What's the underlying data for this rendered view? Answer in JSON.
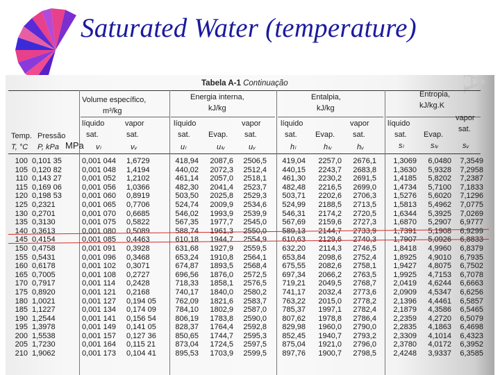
{
  "slide": {
    "title": "Saturated Water (temperature)",
    "logo_icon": "fan-logo-icon",
    "accent_red": "#d42a2a",
    "title_color": "#1a1a9e"
  },
  "table": {
    "caption_bold": "Tabela A-1",
    "caption_italic": "Continuação",
    "ghost_text": "ndice A",
    "headers": {
      "temp": "Temp.",
      "pressao": "Pressão",
      "temp_sym": "T, °C",
      "press_sym": "P, kPa",
      "press_alt": "MPa",
      "volume": "Volume específico,",
      "volume_unit": "m³/kg",
      "energy": "Energia interna,",
      "energy_unit": "kJ/kg",
      "enthalpy": "Entalpia,",
      "enthalpy_unit": "kJ/kg",
      "entropy": "Entropia,",
      "entropy_unit": "kJ/kg.K",
      "liquido": "líquido",
      "vapor": "vapor",
      "sat": "sat.",
      "evap": "Evap.",
      "vl": "vₗ",
      "vv": "vᵥ",
      "ul": "uₗ",
      "ulv": "uₗᵥ",
      "uv": "uᵥ",
      "hl": "hₗ",
      "hlv": "hₗᵥ",
      "hv": "hᵥ",
      "sl": "sₗ",
      "slv": "sₗᵥ",
      "sv": "sᵥ"
    },
    "columns": {
      "T": "100\n105\n110\n115\n120\n125\n130\n135\n140\n145\n150\n155\n160\n165\n170\n175\n180\n185\n190\n195\n200\n205\n210",
      "P": "0,101 35\n0,120 82\n0,143 27\n0,169 06\n0,198 53\n0,2321\n0,2701\n0,3130\n0,3613\n0,4154\n0,4758\n0,5431\n0,6178\n0,7005\n0,7917\n0,8920\n1,0021\n1,1227\n1,2544\n1,3978\n1,5538\n1,7230\n1,9062",
      "vl": "0,001 044\n0,001 048\n0,001 052\n0,001 056\n0,001 060\n0,001 065\n0,001 070\n0,001 075\n0,001 080\n0,001 085\n0,001 091\n0,001 096\n0,001 102\n0,001 108\n0,001 114\n0,001 121\n0,001 127\n0,001 134\n0,001 141\n0,001 149\n0,001 157\n0,001 164\n0,001 173",
      "vv": "1,6729\n1,4194\n1,2102\n1,0366\n0,8919\n0,7706\n0,6685\n0,5822\n0,5089\n0,4463\n0,3928\n0,3468\n0,3071\n0,2727\n0,2428\n0,2168\n0,194 05\n0,174 09\n0,156 54\n0,141 05\n0,127 36\n0,115 21\n0,104 41",
      "ul": "418,94\n440,02\n461,14\n482,30\n503,50\n524,74\n546,02\n567,35\n588,74\n610,18\n631,68\n653,24\n674,87\n696,56\n718,33\n740,17\n762,09\n784,10\n806,19\n828,37\n850,65\n873,04\n895,53",
      "ulv": "2087,6\n2072,3\n2057,0\n2041,4\n2025,8\n2009,9\n1993,9\n1977,7\n1961,3\n1944,7\n1927,9\n1910,8\n1893,5\n1876,0\n1858,1\n1840,0\n1821,6\n1802,9\n1783,8\n1764,4\n1744,7\n1724,5\n1703,9",
      "uv": "2506,5\n2512,4\n2518,1\n2523,7\n2529,3\n2534,6\n2539,9\n2545,0\n2550,0\n2554,9\n2559,5\n2564,1\n2568,4\n2572,5\n2576,5\n2580,2\n2583,7\n2587,0\n2590,0\n2592,8\n2595,3\n2597,5\n2599,5",
      "hl": "419,04\n440,15\n461,30\n482,48\n503,71\n524,99\n546,31\n567,69\n589,13\n610,63\n632,20\n653,84\n675,55\n697,34\n719,21\n741,17\n763,22\n785,37\n807,62\n829,98\n852,45\n875,04\n897,76",
      "hlv": "2257,0\n2243,7\n2230,2\n2216,5\n2202,6\n2188,5\n2174,2\n2159,6\n2144,7\n2129,6\n2114,3\n2098,6\n2082,6\n2066,2\n2049,5\n2032,4\n2015,0\n1997,1\n1978,8\n1960,0\n1940,7\n1921,0\n1900,7",
      "hv": "2676,1\n2683,8\n2691,5\n2699,0\n2706,3\n2713,5\n2720,5\n2727,3\n2733,9\n2740,3\n2746,5\n2752,4\n2758,1\n2763,5\n2768,7\n2773,6\n2778,2\n2782,4\n2786,4\n2790,0\n2793,2\n2796,0\n2798,5",
      "sl": "1,3069\n1,3630\n1,4185\n1,4734\n1,5276\n1,5813\n1,6344\n1,6870\n1,7391\n1,7907\n1,8418\n1,8925\n1,9427\n1,9925\n2,0419\n2,0909\n2,1396\n2,1879\n2,2359\n2,2835\n2,3309\n2,3780\n2,4248",
      "slv": "6,0480\n5,9328\n5,8202\n5,7100\n5,6020\n5,4962\n5,3925\n5,2907\n5,1908\n5,0926\n4,9960\n4,9010\n4,8075\n4,7153\n4,6244\n4,5347\n4,4461\n4,3586\n4,2720\n4,1863\n4,1014\n4,0172\n3,9337",
      "sv": "7,3549\n7,2958\n7,2387\n7,1833\n7,1296\n7,0775\n7,0269\n6,9777\n6,9299\n6,8833\n6,8379\n6,7935\n6,7502\n6,7078\n6,6663\n6,6256\n6,5857\n6,5465\n6,5079\n6,4698\n6,4323\n6,3952\n6,3585"
    }
  }
}
